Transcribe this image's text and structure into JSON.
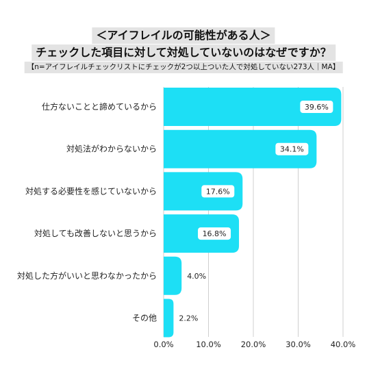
{
  "title_line1": "＜アイフレイルの可能性がある人＞",
  "title_line2": "チェックした項目に対して対処していないのはなぜですか？",
  "subtitle": "【n=アイフレイルチェックリストにチェックが2つ以上ついた人で対処していない273人｜MA】",
  "colors": {
    "bar": "#1ddff5",
    "grid": "#cfcfcf",
    "label_box": "#ffffff"
  },
  "chart_data": {
    "type": "bar",
    "orientation": "horizontal",
    "categories": [
      "仕方ないことと諦めているから",
      "対処法がわからないから",
      "対処する必要性を感じていないから",
      "対処しても改善しないと思うから",
      "対処した方がいいと思わなかったから",
      "その他"
    ],
    "values": [
      39.6,
      34.1,
      17.6,
      16.8,
      4.0,
      2.2
    ],
    "value_labels": [
      "39.6%",
      "34.1%",
      "17.6%",
      "16.8%",
      "4.0%",
      "2.2%"
    ],
    "xlim": [
      0,
      40
    ],
    "xticks": [
      0,
      10,
      20,
      30,
      40
    ],
    "xtick_labels": [
      "0.0%",
      "10.0%",
      "20.0%",
      "30.0%",
      "40.0%"
    ],
    "grid": true
  }
}
